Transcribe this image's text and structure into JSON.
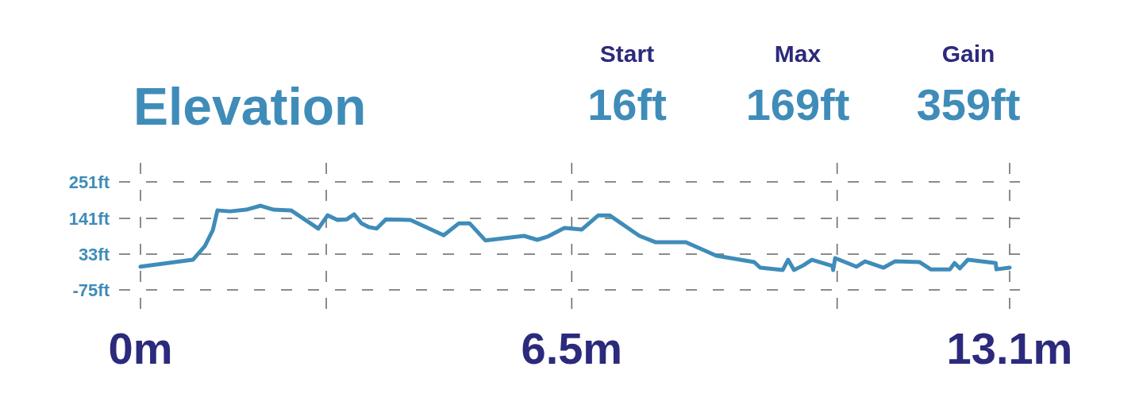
{
  "chart_data": {
    "type": "line",
    "title": "Elevation",
    "annotations": [
      "Start",
      "16ft",
      "Max",
      "169ft",
      "Gain",
      "359ft"
    ],
    "x": [
      0,
      0.79,
      0.97,
      1.09,
      1.16,
      1.35,
      1.59,
      1.81,
      2.01,
      2.27,
      2.68,
      2.82,
      2.97,
      3.11,
      3.22,
      3.33,
      3.45,
      3.56,
      3.7,
      4.07,
      4.57,
      4.8,
      4.96,
      5.2,
      5.78,
      5.98,
      6.14,
      6.39,
      6.65,
      6.9,
      7.07,
      7.52,
      7.76,
      8.22,
      8.68,
      9.25,
      9.34,
      9.68,
      9.76,
      9.85,
      9.99,
      10.12,
      10.43,
      10.44,
      10.47,
      10.79,
      10.92,
      11.2,
      11.37,
      11.74,
      11.91,
      12.2,
      12.27,
      12.35,
      12.47,
      12.89,
      12.9,
      13.1
    ],
    "series": [
      {
        "color": "#3f8cb9",
        "values": [
          -5,
          16,
          57,
          105,
          165,
          162,
          167,
          179,
          167,
          165,
          110,
          150,
          136,
          138,
          153,
          126,
          114,
          110,
          138,
          136,
          90,
          126,
          126,
          74,
          88,
          76,
          86,
          112,
          107,
          150,
          150,
          88,
          69,
          69,
          28,
          9,
          -8,
          -15,
          16,
          -15,
          -1,
          16,
          -3,
          -15,
          21,
          -5,
          11,
          -8,
          11,
          9,
          -13,
          -13,
          6,
          -10,
          16,
          6,
          -13,
          -8
        ]
      }
    ],
    "xlim": [
      0,
      13.1
    ],
    "xticks": [
      {
        "value": 0,
        "label": "0m"
      },
      {
        "value": 2.8,
        "label": null
      },
      {
        "value": 6.5,
        "label": "6.5m"
      },
      {
        "value": 10.5,
        "label": null
      },
      {
        "value": 13.1,
        "label": "13.1m"
      }
    ],
    "ylim": [
      -75,
      251
    ],
    "yticks": [
      {
        "value": -75,
        "label": "-75ft"
      },
      {
        "value": 33,
        "label": "33ft"
      },
      {
        "value": 141,
        "label": "141ft"
      },
      {
        "value": 251,
        "label": "251ft"
      }
    ],
    "grid": true,
    "line_style": "solid",
    "marker": "none"
  }
}
